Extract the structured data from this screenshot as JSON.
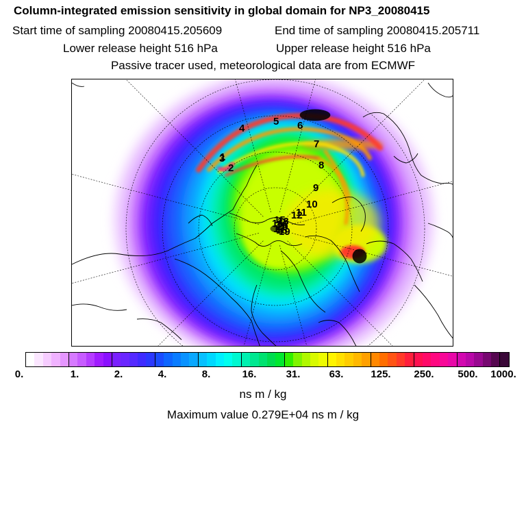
{
  "header": {
    "title": "Column-integrated emission sensitivity in global domain for NP3_20080415",
    "start_time": "Start time of sampling 20080415.205609",
    "end_time": "End time of sampling 20080415.205711",
    "lower_height": "Lower release height  516 hPa",
    "upper_height": "Upper release height  516 hPa",
    "tracer_info": "Passive tracer used, meteorological data are from ECMWF"
  },
  "map": {
    "projection": "polar-stereographic",
    "trajectory_labels": [
      "1",
      "2",
      "3",
      "4",
      "5",
      "6",
      "7",
      "8",
      "9",
      "10",
      "11",
      "12",
      "13",
      "14",
      "15",
      "16",
      "17",
      "18",
      "19",
      "20"
    ],
    "field_colors": [
      "#ffffff",
      "#f2d6ff",
      "#e0b0ff",
      "#c870ff",
      "#a030ff",
      "#7a1cff",
      "#3b22ff",
      "#1a5cff",
      "#0a9cff",
      "#00e0ff",
      "#00f0c0",
      "#00e86a",
      "#2af000",
      "#c8ff00",
      "#ffe600",
      "#ff9a00",
      "#ff3a2a",
      "#ff0a80"
    ]
  },
  "colorbar": {
    "colors": [
      "#ffffff",
      "#fbe6ff",
      "#f6ccff",
      "#f0b2ff",
      "#e596ff",
      "#d67aff",
      "#c75cff",
      "#b53cff",
      "#a01cff",
      "#8a10ff",
      "#7a20ff",
      "#6a26ff",
      "#552aff",
      "#3f2bff",
      "#2b38ff",
      "#1a4cff",
      "#0e66ff",
      "#0a7cff",
      "#0a92ff",
      "#0aa8ff",
      "#08c0ff",
      "#00d8ff",
      "#00f0ff",
      "#00ffee",
      "#00f8d0",
      "#00f0b0",
      "#00e890",
      "#00e270",
      "#00dc50",
      "#00e830",
      "#30f000",
      "#80f400",
      "#b0f800",
      "#d8fa00",
      "#eefc00",
      "#fff400",
      "#ffe000",
      "#ffcc00",
      "#ffb800",
      "#ffa000",
      "#ff8800",
      "#ff6e00",
      "#ff5414",
      "#ff3a28",
      "#ff1e3c",
      "#ff1050",
      "#ff0a68",
      "#ff0880",
      "#f80898",
      "#e808a8",
      "#d208b0",
      "#b808a8",
      "#980890",
      "#760870",
      "#560850",
      "#3a0838"
    ],
    "ticks": [
      "0.",
      "1.",
      "2.",
      "4.",
      "8.",
      "16.",
      "31.",
      "63.",
      "125.",
      "250.",
      "500.",
      "1000."
    ]
  },
  "units": "ns m / kg",
  "max_value": "Maximum value  0.279E+04 ns m / kg"
}
